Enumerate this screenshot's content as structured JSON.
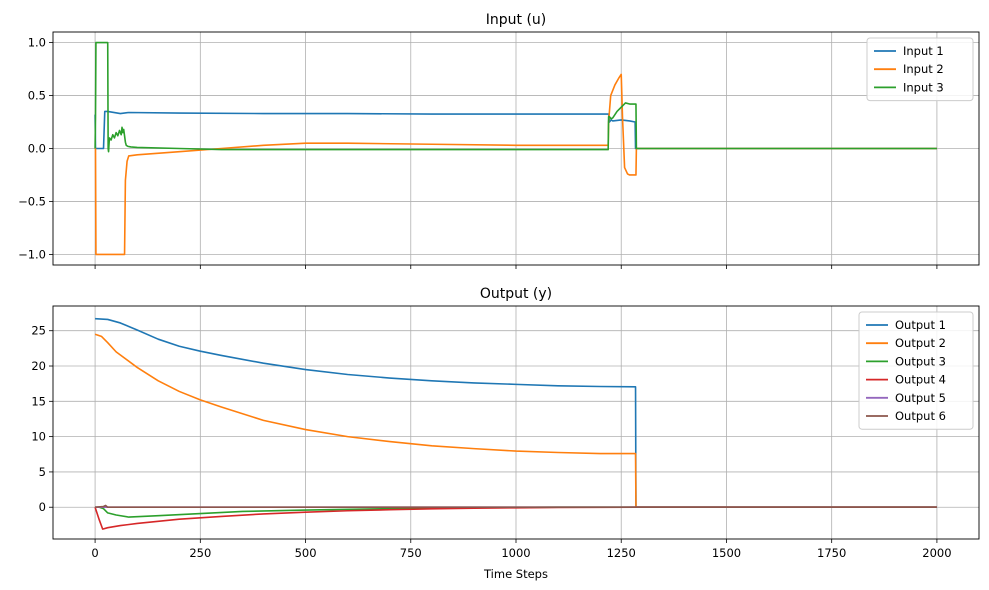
{
  "chart_data": [
    {
      "type": "line",
      "title": "Input (u)",
      "xlabel": "",
      "ylabel": "",
      "xlim": [
        -100,
        2100
      ],
      "ylim": [
        -1.1,
        1.1
      ],
      "xticks": [
        0,
        250,
        500,
        750,
        1000,
        1250,
        1500,
        1750,
        2000
      ],
      "yticks": [
        -1.0,
        -0.5,
        0.0,
        0.5,
        1.0
      ],
      "ytick_labels": [
        "−1.0",
        "−0.5",
        "0.0",
        "0.5",
        "1.0"
      ],
      "grid": true,
      "legend_position": "top-right",
      "series": [
        {
          "name": "Input 1",
          "color": "#1f77b4",
          "x": [
            0,
            1,
            3,
            5,
            20,
            23,
            30,
            60,
            80,
            200,
            400,
            600,
            800,
            1000,
            1100,
            1220,
            1222,
            1226,
            1230,
            1250,
            1270,
            1283,
            1284,
            1286,
            2000
          ],
          "y": [
            0.32,
            0.0,
            0.0,
            0.0,
            0.0,
            0.35,
            0.35,
            0.33,
            0.34,
            0.335,
            0.33,
            0.33,
            0.325,
            0.325,
            0.325,
            0.325,
            0.25,
            0.27,
            0.26,
            0.27,
            0.26,
            0.25,
            0.0,
            0.0,
            0.0
          ]
        },
        {
          "name": "Input 2",
          "color": "#ff7f0e",
          "x": [
            0,
            1,
            2,
            10,
            60,
            70,
            72,
            76,
            80,
            100,
            200,
            300,
            400,
            500,
            600,
            800,
            1000,
            1100,
            1219,
            1220,
            1225,
            1235,
            1245,
            1250,
            1253,
            1258,
            1265,
            1270,
            1285,
            1286,
            1290,
            2000
          ],
          "y": [
            0.0,
            0.0,
            -1.0,
            -1.0,
            -1.0,
            -1.0,
            -0.3,
            -0.12,
            -0.07,
            -0.06,
            -0.03,
            0.0,
            0.03,
            0.05,
            0.05,
            0.04,
            0.03,
            0.03,
            0.03,
            0.25,
            0.5,
            0.6,
            0.67,
            0.7,
            0.3,
            -0.18,
            -0.24,
            -0.25,
            -0.25,
            0.0,
            0.0,
            0.0
          ]
        },
        {
          "name": "Input 3",
          "color": "#2ca02c",
          "x": [
            0,
            1,
            2,
            30,
            31,
            32,
            34,
            38,
            42,
            46,
            50,
            54,
            58,
            62,
            64,
            66,
            68,
            70,
            72,
            74,
            78,
            85,
            100,
            200,
            300,
            500,
            800,
            1100,
            1219,
            1220,
            1222,
            1226,
            1230,
            1240,
            1250,
            1260,
            1270,
            1285,
            1286,
            1290,
            2000
          ],
          "y": [
            0.0,
            0.3,
            1.0,
            1.0,
            0.0,
            -0.03,
            0.1,
            0.08,
            0.13,
            0.1,
            0.15,
            0.12,
            0.17,
            0.13,
            0.2,
            0.15,
            0.18,
            0.12,
            0.06,
            0.03,
            0.02,
            0.015,
            0.01,
            0.0,
            -0.01,
            -0.01,
            -0.01,
            -0.01,
            -0.01,
            0.3,
            0.3,
            0.28,
            0.29,
            0.35,
            0.39,
            0.43,
            0.42,
            0.42,
            0.0,
            0.0,
            0.0
          ]
        }
      ]
    },
    {
      "type": "line",
      "title": "Output (y)",
      "xlabel": "Time Steps",
      "ylabel": "",
      "xlim": [
        -100,
        2100
      ],
      "ylim": [
        -4.5,
        28.5
      ],
      "xticks": [
        0,
        250,
        500,
        750,
        1000,
        1250,
        1500,
        1750,
        2000
      ],
      "yticks": [
        0,
        5,
        10,
        15,
        20,
        25
      ],
      "grid": true,
      "legend_position": "top-right",
      "series": [
        {
          "name": "Output 1",
          "color": "#1f77b4",
          "x": [
            0,
            30,
            60,
            100,
            150,
            200,
            250,
            300,
            400,
            500,
            600,
            700,
            800,
            900,
            1000,
            1100,
            1200,
            1284,
            1285,
            2000
          ],
          "y": [
            26.7,
            26.6,
            26.1,
            25.1,
            23.8,
            22.8,
            22.1,
            21.5,
            20.4,
            19.5,
            18.8,
            18.3,
            17.9,
            17.6,
            17.4,
            17.2,
            17.1,
            17.05,
            0.0,
            0.0
          ]
        },
        {
          "name": "Output 2",
          "color": "#ff7f0e",
          "x": [
            0,
            15,
            30,
            50,
            100,
            150,
            200,
            250,
            300,
            400,
            500,
            600,
            700,
            800,
            900,
            1000,
            1100,
            1200,
            1284,
            1285,
            2000
          ],
          "y": [
            24.5,
            24.2,
            23.3,
            22.0,
            19.8,
            17.9,
            16.4,
            15.2,
            14.2,
            12.3,
            11.0,
            10.0,
            9.3,
            8.7,
            8.3,
            7.95,
            7.75,
            7.6,
            7.6,
            0.0,
            0.0
          ]
        },
        {
          "name": "Output 3",
          "color": "#2ca02c",
          "x": [
            0,
            10,
            20,
            30,
            50,
            80,
            150,
            250,
            350,
            500,
            700,
            900,
            1100,
            1284,
            2000
          ],
          "y": [
            0.0,
            0.0,
            -0.2,
            -0.8,
            -1.1,
            -1.4,
            -1.2,
            -0.9,
            -0.6,
            -0.4,
            -0.2,
            -0.05,
            0.0,
            0.0,
            0.0
          ]
        },
        {
          "name": "Output 4",
          "color": "#d62728",
          "x": [
            0,
            10,
            18,
            30,
            60,
            100,
            200,
            300,
            400,
            500,
            600,
            700,
            800,
            900,
            1000,
            1100,
            1200,
            1284,
            2000
          ],
          "y": [
            0.0,
            -1.8,
            -3.1,
            -2.9,
            -2.6,
            -2.3,
            -1.7,
            -1.3,
            -0.95,
            -0.7,
            -0.5,
            -0.35,
            -0.22,
            -0.14,
            -0.08,
            -0.04,
            -0.02,
            0.0,
            0.0
          ]
        },
        {
          "name": "Output 5",
          "color": "#9467bd",
          "x": [
            0,
            2000
          ],
          "y": [
            0.0,
            0.0
          ]
        },
        {
          "name": "Output 6",
          "color": "#8c564b",
          "x": [
            0,
            20,
            25,
            30,
            2000
          ],
          "y": [
            0.0,
            0.1,
            0.25,
            0.0,
            0.0
          ]
        }
      ]
    }
  ]
}
